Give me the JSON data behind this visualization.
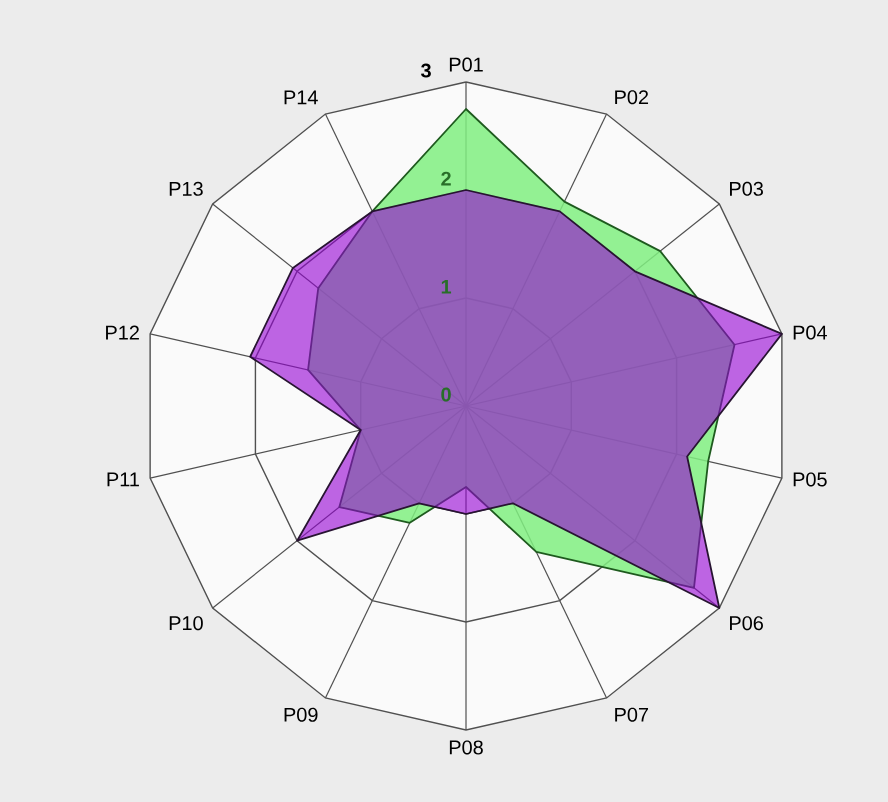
{
  "chart_data": {
    "type": "radar",
    "categories": [
      "P01",
      "P02",
      "P03",
      "P04",
      "P05",
      "P06",
      "P07",
      "P08",
      "P09",
      "P10",
      "P11",
      "P12",
      "P13",
      "P14"
    ],
    "ylim": [
      0,
      3
    ],
    "yticks": [
      0,
      1,
      2,
      3
    ],
    "grid": true,
    "series": [
      {
        "color": "#80ee80",
        "values": [
          2.75,
          2.1,
          2.3,
          2.55,
          2.3,
          2.7,
          1.5,
          0.75,
          1.2,
          1.5,
          1.0,
          1.5,
          1.75,
          2.0
        ]
      },
      {
        "color": "#9400d3",
        "values": [
          2.0,
          2.0,
          2.0,
          3.0,
          2.1,
          3.0,
          1.0,
          1.0,
          1.0,
          2.0,
          1.0,
          2.05,
          2.05,
          2.0
        ]
      }
    ]
  }
}
